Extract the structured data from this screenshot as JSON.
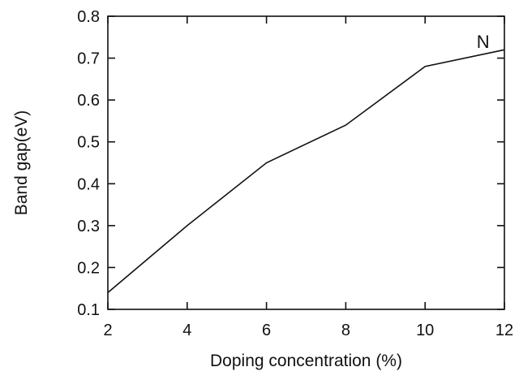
{
  "chart_data": {
    "type": "line",
    "title": "",
    "xlabel": "Doping concentration (%)",
    "ylabel": "Band gap(eV)",
    "xlim": [
      2,
      12
    ],
    "ylim": [
      0.1,
      0.8
    ],
    "x_ticks": [
      2,
      4,
      6,
      8,
      10,
      12
    ],
    "y_ticks": [
      0.1,
      0.2,
      0.3,
      0.4,
      0.5,
      0.6,
      0.7,
      0.8
    ],
    "x_tick_labels": [
      "2",
      "4",
      "6",
      "8",
      "10",
      "12"
    ],
    "y_tick_labels": [
      "0.1",
      "0.2",
      "0.3",
      "0.4",
      "0.5",
      "0.6",
      "0.7",
      "0.8"
    ],
    "grid": false,
    "series": [
      {
        "x": [
          2,
          4,
          6,
          8,
          10,
          12
        ],
        "values": [
          0.14,
          0.3,
          0.45,
          0.54,
          0.68,
          0.72
        ],
        "color": "#111111"
      }
    ],
    "annotations": [
      {
        "text": "N",
        "x": 11.3,
        "y": 0.74
      }
    ]
  }
}
